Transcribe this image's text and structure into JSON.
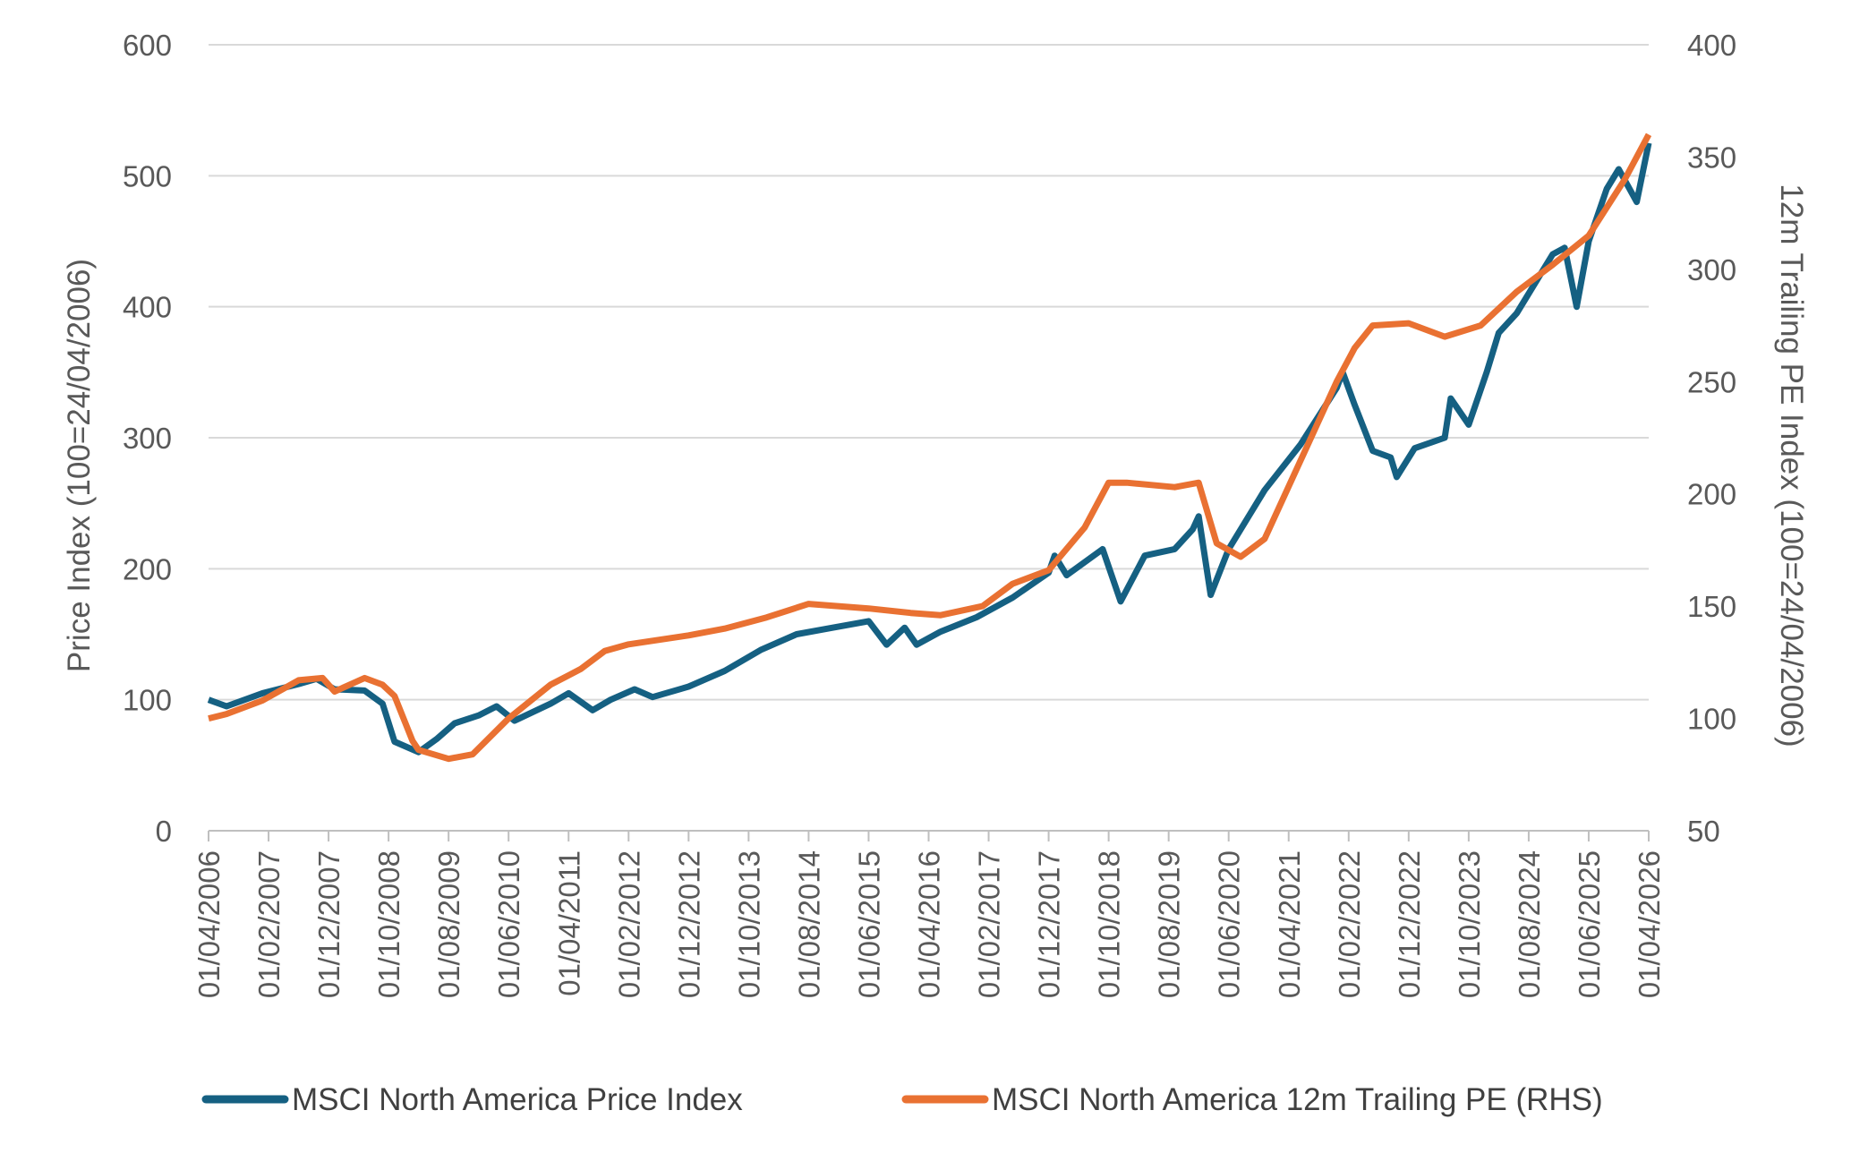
{
  "chart_data": {
    "type": "line",
    "title": "",
    "xlabel": "",
    "ylabel": "Price Index (100=24/04/2006)",
    "y2label": "12m Trailing PE Index (100=24/04/2006)",
    "ylim": [
      0,
      600
    ],
    "y2lim": [
      50,
      400
    ],
    "yticks": [
      "0",
      "100",
      "200",
      "300",
      "400",
      "500",
      "600"
    ],
    "y2ticks": [
      "50",
      "100",
      "150",
      "200",
      "250",
      "300",
      "350",
      "400"
    ],
    "xticks": [
      "01/04/2006",
      "01/02/2007",
      "01/12/2007",
      "01/10/2008",
      "01/08/2009",
      "01/06/2010",
      "01/04/2011",
      "01/02/2012",
      "01/12/2012",
      "01/10/2013",
      "01/08/2014",
      "01/06/2015",
      "01/04/2016",
      "01/02/2017",
      "01/12/2017",
      "01/10/2018",
      "01/08/2019",
      "01/06/2020",
      "01/04/2021",
      "01/02/2022",
      "01/12/2022",
      "01/10/2023",
      "01/08/2024",
      "01/06/2025",
      "01/04/2026"
    ],
    "grid": "horizontal",
    "legend_position": "bottom",
    "series": [
      {
        "name": "MSCI North America Price Index",
        "axis": "left",
        "color": "#156082",
        "x": [
          "2006-04",
          "2006-07",
          "2007-01",
          "2007-07",
          "2007-10",
          "2008-01",
          "2008-06",
          "2008-09",
          "2008-11",
          "2009-03",
          "2009-06",
          "2009-09",
          "2010-01",
          "2010-04",
          "2010-07",
          "2011-01",
          "2011-04",
          "2011-08",
          "2011-11",
          "2012-03",
          "2012-06",
          "2012-12",
          "2013-06",
          "2013-12",
          "2014-06",
          "2014-12",
          "2015-06",
          "2015-09",
          "2015-12",
          "2016-02",
          "2016-06",
          "2016-12",
          "2017-06",
          "2017-12",
          "2018-01",
          "2018-03",
          "2018-09",
          "2018-12",
          "2019-04",
          "2019-09",
          "2019-12",
          "2020-01",
          "2020-03",
          "2020-06",
          "2020-12",
          "2021-06",
          "2021-12",
          "2022-01",
          "2022-03",
          "2022-06",
          "2022-09",
          "2022-10",
          "2023-01",
          "2023-06",
          "2023-07",
          "2023-10",
          "2024-01",
          "2024-03",
          "2024-06",
          "2024-12",
          "2025-02",
          "2025-04",
          "2025-06",
          "2025-09",
          "2025-11",
          "2026-02",
          "2026-04"
        ],
        "values": [
          100,
          95,
          105,
          112,
          116,
          108,
          107,
          97,
          68,
          60,
          70,
          82,
          88,
          95,
          84,
          97,
          105,
          92,
          100,
          108,
          102,
          110,
          122,
          138,
          150,
          155,
          160,
          142,
          155,
          142,
          152,
          163,
          178,
          197,
          210,
          195,
          215,
          175,
          210,
          215,
          230,
          240,
          180,
          215,
          260,
          295,
          338,
          350,
          325,
          290,
          285,
          270,
          292,
          300,
          330,
          310,
          350,
          380,
          395,
          440,
          445,
          400,
          450,
          490,
          505,
          480,
          525
        ]
      },
      {
        "name": "MSCI North America 12m Trailing PE (RHS)",
        "axis": "right",
        "color": "#E97132",
        "x": [
          "2006-04",
          "2006-07",
          "2007-01",
          "2007-07",
          "2007-11",
          "2008-01",
          "2008-06",
          "2008-09",
          "2008-11",
          "2009-02",
          "2009-03",
          "2009-08",
          "2009-12",
          "2010-06",
          "2011-01",
          "2011-06",
          "2011-10",
          "2012-02",
          "2012-12",
          "2013-06",
          "2014-01",
          "2014-08",
          "2015-06",
          "2016-01",
          "2016-06",
          "2017-01",
          "2017-06",
          "2017-12",
          "2018-06",
          "2018-10",
          "2019-01",
          "2019-09",
          "2020-01",
          "2020-04",
          "2020-08",
          "2020-12",
          "2021-06",
          "2021-12",
          "2022-03",
          "2022-06",
          "2022-12",
          "2023-06",
          "2023-12",
          "2024-06",
          "2024-12",
          "2025-06",
          "2025-12",
          "2026-04"
        ],
        "values": [
          100,
          102,
          108,
          117,
          118,
          112,
          118,
          115,
          110,
          90,
          86,
          82,
          84,
          100,
          115,
          122,
          130,
          133,
          137,
          140,
          145,
          151,
          149,
          147,
          146,
          150,
          160,
          166,
          185,
          205,
          205,
          203,
          205,
          178,
          172,
          180,
          215,
          250,
          265,
          275,
          276,
          270,
          275,
          290,
          302,
          315,
          340,
          360
        ]
      }
    ]
  }
}
